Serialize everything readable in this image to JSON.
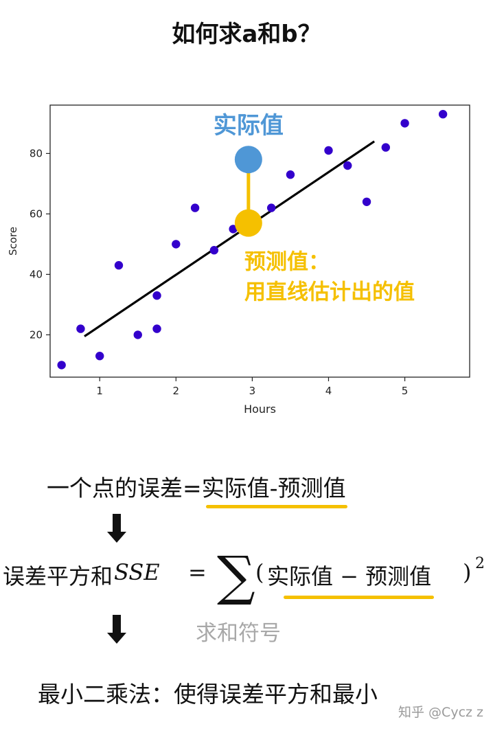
{
  "title": "如何求a和b？",
  "chart_data": {
    "type": "scatter",
    "xlabel": "Hours",
    "ylabel": "Score",
    "xlim": [
      0.35,
      5.85
    ],
    "ylim": [
      6,
      96
    ],
    "x_ticks": [
      1,
      2,
      3,
      4,
      5
    ],
    "y_ticks": [
      20,
      40,
      60,
      80
    ],
    "grid": false,
    "points": [
      {
        "x": 0.5,
        "y": 10
      },
      {
        "x": 0.75,
        "y": 22
      },
      {
        "x": 1.0,
        "y": 13
      },
      {
        "x": 1.25,
        "y": 43
      },
      {
        "x": 1.5,
        "y": 20
      },
      {
        "x": 1.75,
        "y": 22
      },
      {
        "x": 1.75,
        "y": 33
      },
      {
        "x": 2.0,
        "y": 50
      },
      {
        "x": 2.25,
        "y": 62
      },
      {
        "x": 2.5,
        "y": 48
      },
      {
        "x": 2.75,
        "y": 55
      },
      {
        "x": 3.25,
        "y": 62
      },
      {
        "x": 3.5,
        "y": 73
      },
      {
        "x": 4.0,
        "y": 81
      },
      {
        "x": 4.25,
        "y": 76
      },
      {
        "x": 4.5,
        "y": 64
      },
      {
        "x": 4.75,
        "y": 82
      },
      {
        "x": 5.0,
        "y": 90
      },
      {
        "x": 5.5,
        "y": 93
      }
    ],
    "regression_line": [
      {
        "x": 0.8,
        "y": 19.5
      },
      {
        "x": 4.6,
        "y": 84
      }
    ],
    "highlight": {
      "x": 2.95,
      "actual_y": 78,
      "predicted_y": 57,
      "actual_label": "实际值",
      "predicted_label_lines": [
        "预测值：",
        "用直线估计出的值"
      ],
      "actual_color": "#4f97d6",
      "predicted_color": "#f5c000"
    },
    "point_color": "#3300cc",
    "line_color": "#000000"
  },
  "formula": {
    "line1_prefix": "一个点的误差=",
    "line1_underlined": "实际值-预测值",
    "sse_lhs": "误差平方和",
    "sse_var": "SSE",
    "sse_eq": "=",
    "sse_sum": "∑",
    "sse_open": "(",
    "sse_body": "实际值 − 预测值",
    "sse_close": ")",
    "sse_exp": "2",
    "sum_symbol_label": "求和符号",
    "conclusion": "最小二乘法：使得误差平方和最小"
  },
  "watermark": "知乎 @Cycz z",
  "colors": {
    "accent": "#f5c000",
    "blue": "#4f97d6",
    "label_gray": "#a8a8a8"
  }
}
